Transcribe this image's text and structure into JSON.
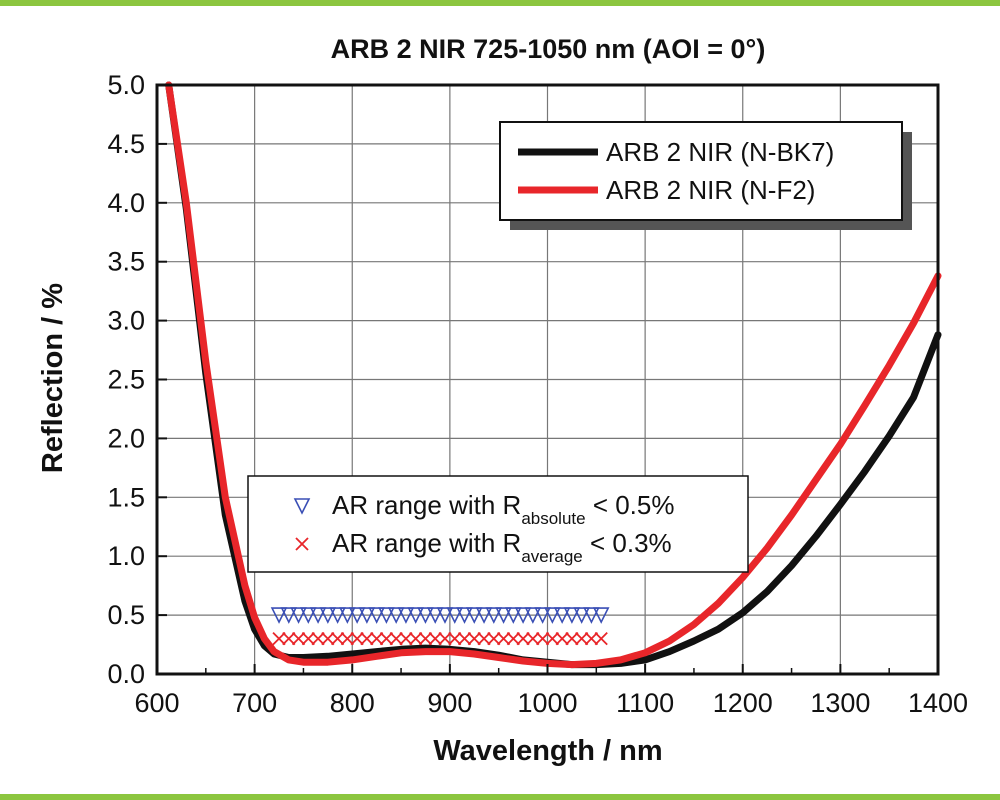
{
  "chart_data": {
    "type": "line",
    "title": "ARB 2 NIR 725-1050 nm (AOI = 0°)",
    "xlabel": "Wavelength / nm",
    "ylabel": "Reflection / %",
    "xlim": [
      600,
      1400
    ],
    "ylim": [
      0,
      5
    ],
    "xticks": [
      "600",
      "700",
      "800",
      "900",
      "1000",
      "1100",
      "1200",
      "1300",
      "1400"
    ],
    "yticks": [
      "0.0",
      "0.5",
      "1.0",
      "1.5",
      "2.0",
      "2.5",
      "3.0",
      "3.5",
      "4.0",
      "4.5",
      "5.0"
    ],
    "grid": true,
    "series": [
      {
        "name": "ARB 2 NIR (N-BK7)",
        "color": "#111111",
        "points": [
          [
            612,
            5.0
          ],
          [
            630,
            3.95
          ],
          [
            650,
            2.55
          ],
          [
            670,
            1.35
          ],
          [
            690,
            0.62
          ],
          [
            700,
            0.38
          ],
          [
            710,
            0.24
          ],
          [
            720,
            0.17
          ],
          [
            735,
            0.14
          ],
          [
            750,
            0.14
          ],
          [
            775,
            0.15
          ],
          [
            800,
            0.17
          ],
          [
            825,
            0.19
          ],
          [
            850,
            0.21
          ],
          [
            875,
            0.22
          ],
          [
            900,
            0.21
          ],
          [
            925,
            0.19
          ],
          [
            950,
            0.16
          ],
          [
            975,
            0.12
          ],
          [
            1000,
            0.1
          ],
          [
            1025,
            0.08
          ],
          [
            1050,
            0.08
          ],
          [
            1075,
            0.09
          ],
          [
            1100,
            0.12
          ],
          [
            1125,
            0.19
          ],
          [
            1150,
            0.28
          ],
          [
            1175,
            0.38
          ],
          [
            1200,
            0.52
          ],
          [
            1225,
            0.7
          ],
          [
            1250,
            0.92
          ],
          [
            1275,
            1.17
          ],
          [
            1300,
            1.44
          ],
          [
            1325,
            1.72
          ],
          [
            1350,
            2.02
          ],
          [
            1375,
            2.35
          ],
          [
            1400,
            2.88
          ]
        ]
      },
      {
        "name": "ARB 2 NIR (N-F2)",
        "color": "#e8262a",
        "points": [
          [
            612,
            5.0
          ],
          [
            630,
            4.0
          ],
          [
            650,
            2.65
          ],
          [
            670,
            1.5
          ],
          [
            690,
            0.75
          ],
          [
            700,
            0.48
          ],
          [
            710,
            0.3
          ],
          [
            720,
            0.19
          ],
          [
            735,
            0.12
          ],
          [
            750,
            0.1
          ],
          [
            775,
            0.1
          ],
          [
            800,
            0.12
          ],
          [
            825,
            0.15
          ],
          [
            850,
            0.18
          ],
          [
            875,
            0.19
          ],
          [
            900,
            0.19
          ],
          [
            925,
            0.17
          ],
          [
            950,
            0.14
          ],
          [
            975,
            0.11
          ],
          [
            1000,
            0.09
          ],
          [
            1025,
            0.08
          ],
          [
            1050,
            0.09
          ],
          [
            1075,
            0.12
          ],
          [
            1100,
            0.18
          ],
          [
            1125,
            0.28
          ],
          [
            1150,
            0.42
          ],
          [
            1175,
            0.6
          ],
          [
            1200,
            0.82
          ],
          [
            1225,
            1.07
          ],
          [
            1250,
            1.35
          ],
          [
            1275,
            1.65
          ],
          [
            1300,
            1.95
          ],
          [
            1325,
            2.28
          ],
          [
            1350,
            2.62
          ],
          [
            1375,
            2.98
          ],
          [
            1400,
            3.38
          ]
        ]
      }
    ],
    "markers": [
      {
        "name": "AR range with R",
        "sub": "absolute",
        "suffix": " < 0.5%",
        "symbol": "triangle-down",
        "color": "#3a4fb5",
        "y": 0.5,
        "x_start": 725,
        "x_end": 1060
      },
      {
        "name": "AR range with R",
        "sub": "average",
        "suffix": " < 0.3%",
        "symbol": "x",
        "color": "#e8262a",
        "y": 0.3,
        "x_start": 725,
        "x_end": 1060
      }
    ]
  }
}
